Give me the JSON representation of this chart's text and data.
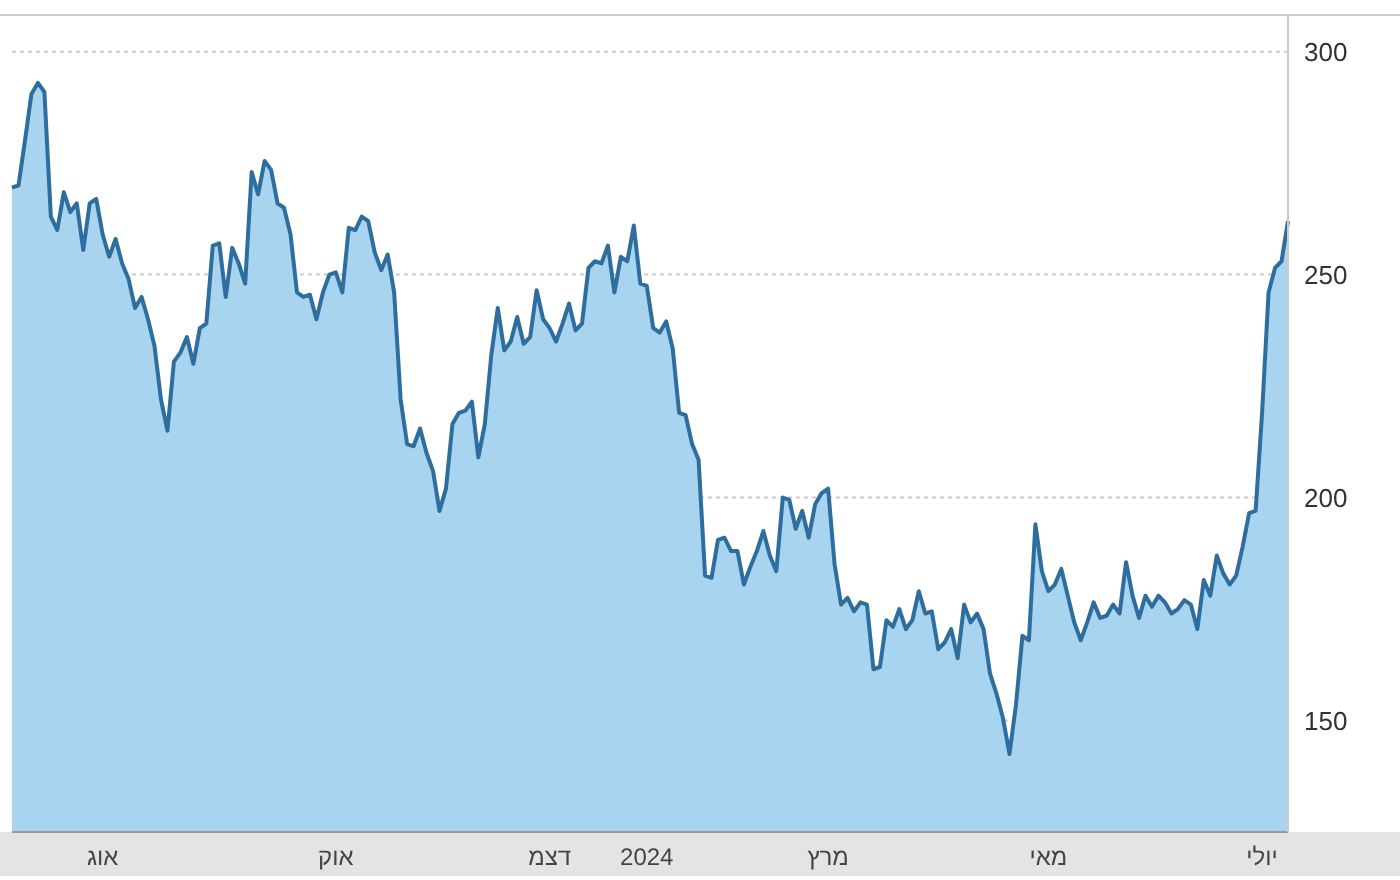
{
  "chart_data": {
    "type": "area",
    "categories": [
      null,
      null,
      null,
      null,
      null,
      null,
      null,
      null,
      null,
      null,
      null,
      null,
      null,
      null,
      "אוג",
      null,
      null,
      null,
      null,
      null,
      null,
      null,
      null,
      null,
      null,
      null,
      null,
      null,
      null,
      null,
      null,
      null,
      null,
      null,
      null,
      null,
      null,
      null,
      null,
      null,
      null,
      null,
      null,
      null,
      null,
      null,
      null,
      null,
      null,
      null,
      "אוק",
      null,
      null,
      null,
      null,
      null,
      null,
      null,
      null,
      null,
      null,
      null,
      null,
      null,
      null,
      null,
      null,
      null,
      null,
      null,
      null,
      null,
      null,
      null,
      null,
      null,
      null,
      null,
      null,
      null,
      null,
      null,
      null,
      "דצמ",
      null,
      null,
      null,
      null,
      null,
      null,
      null,
      null,
      null,
      null,
      null,
      null,
      null,
      null,
      "2024",
      null,
      null,
      null,
      null,
      null,
      null,
      null,
      null,
      null,
      null,
      null,
      null,
      null,
      null,
      null,
      null,
      null,
      null,
      null,
      null,
      null,
      null,
      null,
      null,
      null,
      null,
      null,
      "מרץ",
      null,
      null,
      null,
      null,
      null,
      null,
      null,
      null,
      null,
      null,
      null,
      null,
      null,
      null,
      null,
      null,
      null,
      null,
      null,
      null,
      null,
      null,
      null,
      null,
      null,
      null,
      null,
      null,
      null,
      null,
      null,
      null,
      null,
      "מאי",
      null,
      null,
      null,
      null,
      null,
      null,
      null,
      null,
      null,
      null,
      null,
      null,
      null,
      null,
      null,
      null,
      null,
      null,
      null,
      null,
      null,
      null,
      null,
      null,
      null,
      null,
      null,
      null,
      null,
      null,
      null,
      null,
      "יולי",
      null,
      null,
      null,
      null
    ],
    "series": [
      {
        "color": "#2e6e9e",
        "values": [
          269.5,
          270,
          280,
          290.5,
          293,
          291,
          263,
          260,
          268.5,
          264,
          266,
          255.5,
          266,
          267,
          259,
          254,
          258,
          252.5,
          249,
          242.5,
          245,
          240,
          234,
          222,
          215,
          230.5,
          232.5,
          236,
          230,
          238,
          239,
          256.5,
          257,
          245,
          256,
          252.5,
          248,
          273,
          268,
          275.5,
          273.5,
          266,
          265,
          259,
          246,
          245,
          245.5,
          240,
          246,
          250,
          250.5,
          246,
          260.5,
          260,
          263,
          262,
          255,
          251,
          254.5,
          246,
          222,
          212,
          211.5,
          215.5,
          210,
          206,
          197,
          202,
          216.5,
          219,
          219.5,
          221.5,
          209,
          216.5,
          232,
          242.5,
          233,
          235,
          240.5,
          234.5,
          236,
          246.5,
          240,
          238,
          235,
          239,
          243.5,
          237.5,
          239,
          251.5,
          253,
          252.5,
          256.5,
          246,
          254,
          253,
          261,
          248,
          247.5,
          238,
          237,
          239.5,
          233.5,
          219,
          218.5,
          212,
          208.5,
          182.5,
          182,
          190.5,
          191,
          188,
          188,
          180.5,
          184.5,
          188,
          192.5,
          187,
          183.5,
          200,
          199.5,
          193,
          197,
          191,
          198.5,
          201,
          202,
          185,
          176,
          177.5,
          174.5,
          176.5,
          176,
          161.5,
          162,
          172.5,
          171,
          175,
          170.5,
          172.5,
          179,
          174,
          174.5,
          166,
          167.5,
          170.5,
          164,
          176,
          172,
          174,
          170.5,
          160.5,
          156,
          150.5,
          142.5,
          153.5,
          169,
          168,
          194,
          183.5,
          179,
          180.5,
          184,
          178,
          172,
          168,
          172,
          176.5,
          173,
          173.5,
          176,
          174,
          185.5,
          178,
          173,
          178,
          175.5,
          178,
          176.5,
          174,
          175,
          177,
          176,
          170.5,
          181.5,
          178,
          187,
          183,
          180.5,
          182.5,
          189,
          196.5,
          197,
          219,
          246,
          251.5,
          253,
          262
        ]
      }
    ],
    "ylim": [
      125,
      308
    ],
    "yticks": [
      150,
      200,
      250,
      300
    ],
    "grid": "y"
  }
}
